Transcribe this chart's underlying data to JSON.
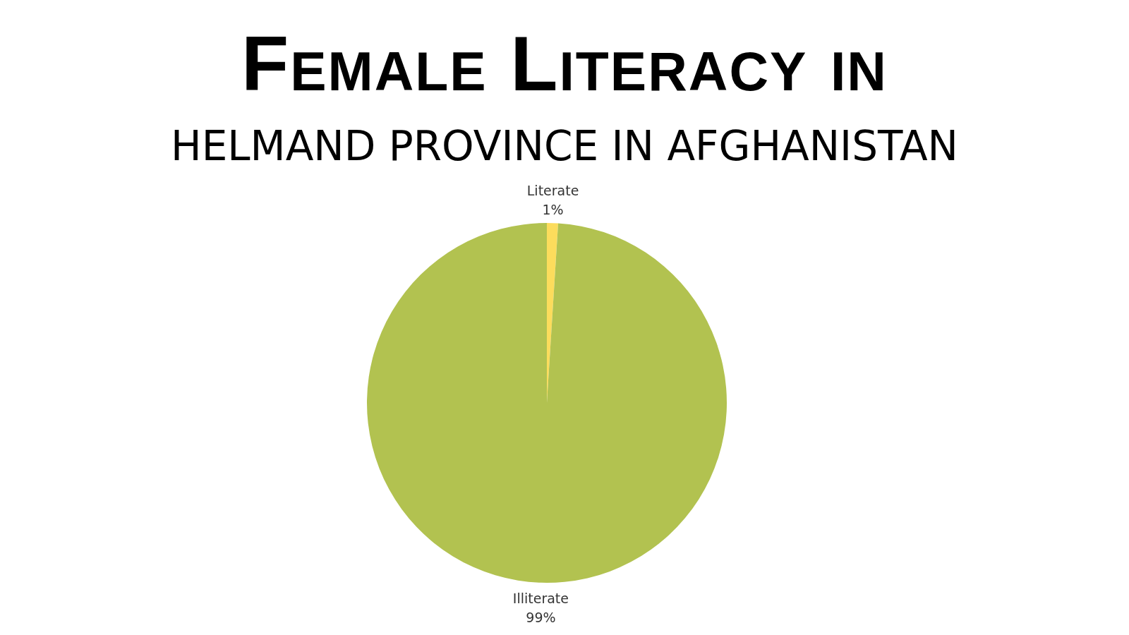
{
  "chart_data": {
    "type": "pie",
    "title": "Female Literacy in",
    "subtitle": "HELMAND PROVINCE IN AFGHANISTAN",
    "categories": [
      "Literate",
      "Illiterate"
    ],
    "values": [
      1,
      99
    ],
    "colors": [
      "#fcdc5c",
      "#b2c250"
    ],
    "value_labels": [
      "1%",
      "99%"
    ],
    "legend": false
  }
}
